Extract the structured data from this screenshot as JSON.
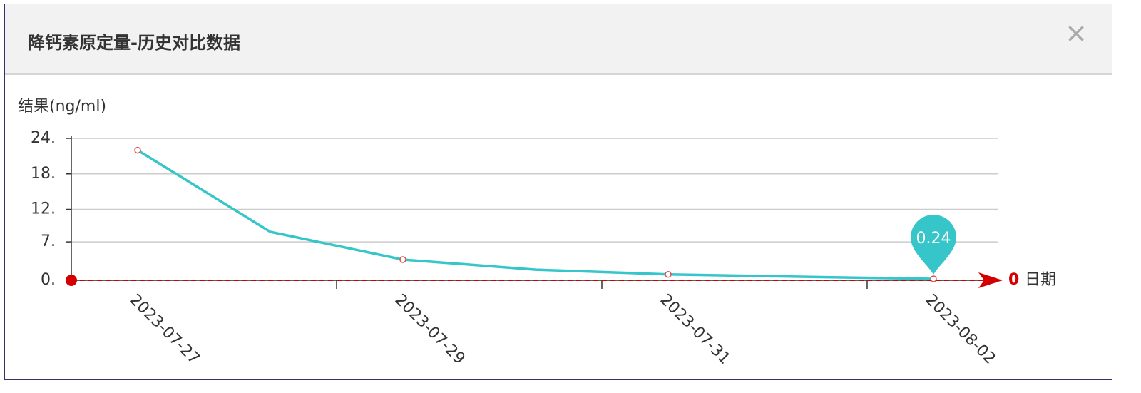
{
  "dialog": {
    "title": "降钙素原定量-历史对比数据"
  },
  "chart_data": {
    "type": "line",
    "y_name": "结果(ng/ml)",
    "x_name": "日期",
    "categories": [
      "2023-07-27",
      null,
      "2023-07-29",
      null,
      "2023-07-31",
      null,
      "2023-08-02"
    ],
    "values": [
      22,
      8.2,
      3.5,
      1.8,
      1.0,
      0.6,
      0.24
    ],
    "color": "#36c6c9",
    "symbol_color": "#d9534f",
    "ylim": [
      0,
      24
    ],
    "yticks": [
      {
        "value": 0,
        "label": "0."
      },
      {
        "value": 6.5,
        "label": "7."
      },
      {
        "value": 12,
        "label": "12."
      },
      {
        "value": 18,
        "label": "18."
      },
      {
        "value": 24,
        "label": "24."
      }
    ],
    "grid": true,
    "mark_line": {
      "value": 0,
      "color": "#d40000"
    },
    "mark_point_index": 6
  }
}
